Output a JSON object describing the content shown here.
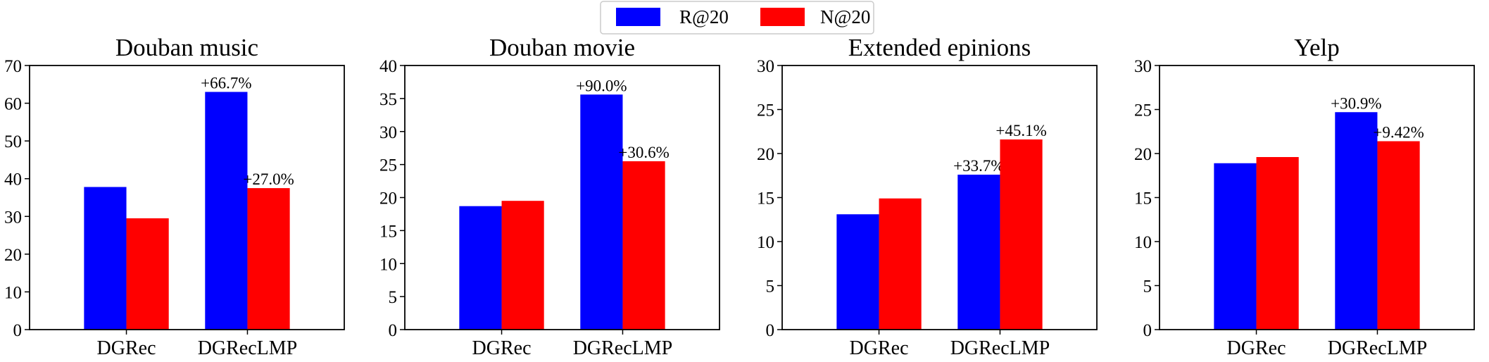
{
  "legend": {
    "entries": [
      {
        "label": "R@20",
        "color": "#0000ff"
      },
      {
        "label": "N@20",
        "color": "#ff0000"
      }
    ]
  },
  "chart_data": [
    {
      "type": "bar",
      "title": "Douban music",
      "categories": [
        "DGRec",
        "DGRecLMP"
      ],
      "series": [
        {
          "name": "R@20",
          "values": [
            37.8,
            63.0
          ],
          "annotations": [
            "",
            "+66.7%"
          ]
        },
        {
          "name": "N@20",
          "values": [
            29.5,
            37.5
          ],
          "annotations": [
            "",
            "+27.0%"
          ]
        }
      ],
      "ylim": [
        0,
        70
      ],
      "yticks": [
        0,
        10,
        20,
        30,
        40,
        50,
        60,
        70
      ],
      "xlabel": "",
      "ylabel": ""
    },
    {
      "type": "bar",
      "title": "Douban movie",
      "categories": [
        "DGRec",
        "DGRecLMP"
      ],
      "series": [
        {
          "name": "R@20",
          "values": [
            18.7,
            35.6
          ],
          "annotations": [
            "",
            "+90.0%"
          ]
        },
        {
          "name": "N@20",
          "values": [
            19.5,
            25.5
          ],
          "annotations": [
            "",
            "+30.6%"
          ]
        }
      ],
      "ylim": [
        0,
        40
      ],
      "yticks": [
        0,
        5,
        10,
        15,
        20,
        25,
        30,
        35,
        40
      ],
      "xlabel": "",
      "ylabel": ""
    },
    {
      "type": "bar",
      "title": "Extended epinions",
      "categories": [
        "DGRec",
        "DGRecLMP"
      ],
      "series": [
        {
          "name": "R@20",
          "values": [
            13.1,
            17.6
          ],
          "annotations": [
            "",
            "+33.7%"
          ]
        },
        {
          "name": "N@20",
          "values": [
            14.9,
            21.6
          ],
          "annotations": [
            "",
            "+45.1%"
          ]
        }
      ],
      "ylim": [
        0,
        30
      ],
      "yticks": [
        0,
        5,
        10,
        15,
        20,
        25,
        30
      ],
      "xlabel": "",
      "ylabel": ""
    },
    {
      "type": "bar",
      "title": "Yelp",
      "categories": [
        "DGRec",
        "DGRecLMP"
      ],
      "series": [
        {
          "name": "R@20",
          "values": [
            18.9,
            24.7
          ],
          "annotations": [
            "",
            "+30.9%"
          ]
        },
        {
          "name": "N@20",
          "values": [
            19.6,
            21.4
          ],
          "annotations": [
            "",
            "+9.42%"
          ]
        }
      ],
      "ylim": [
        0,
        30
      ],
      "yticks": [
        0,
        5,
        10,
        15,
        20,
        25,
        30
      ],
      "xlabel": "",
      "ylabel": ""
    }
  ]
}
